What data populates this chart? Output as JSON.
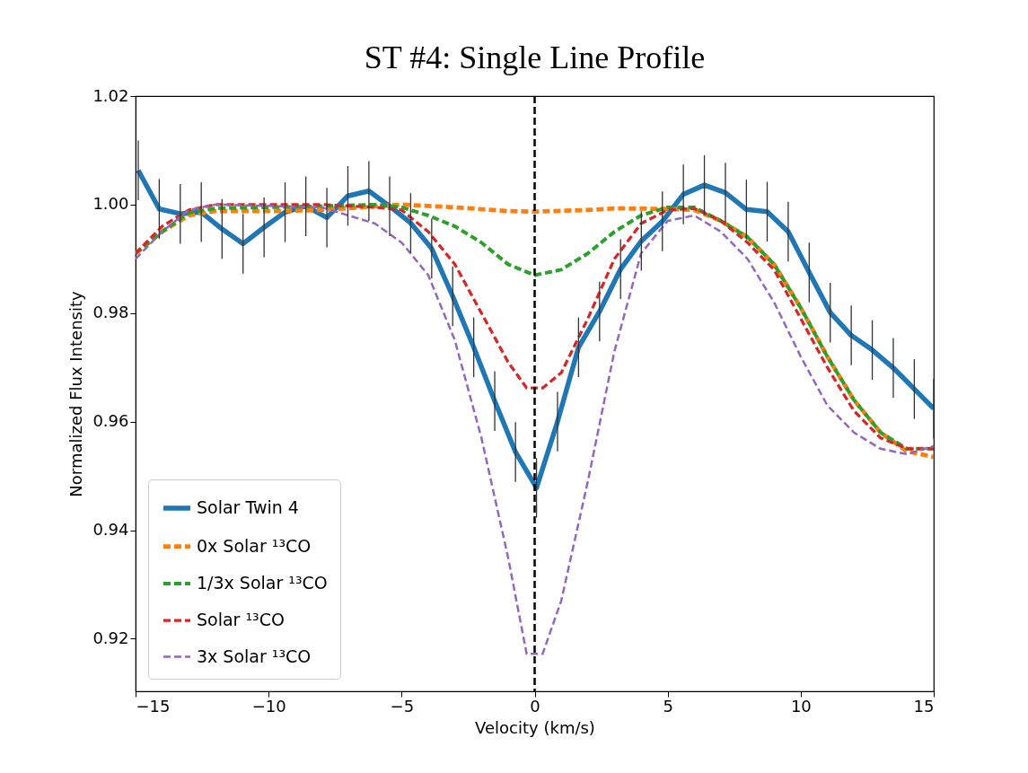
{
  "chart_data": {
    "type": "line",
    "title": "ST #4: Single Line Profile",
    "xlabel": "Velocity (km/s)",
    "ylabel": "Normalized Flux Intensity",
    "xlim": [
      -15,
      15
    ],
    "xticks": [
      -15,
      -10,
      -5,
      0,
      5,
      10,
      15
    ],
    "ylim": [
      0.9103,
      1.02
    ],
    "yticks": [
      0.92,
      0.94,
      0.96,
      0.98,
      {
        "value": 1,
        "label": "1.00"
      },
      1.02
    ],
    "legend": "bottom left",
    "marker": "none",
    "ref_lines": [
      {
        "axis": "x",
        "value": 0,
        "color": "#000000",
        "line_style": "dashed"
      }
    ],
    "series": [
      {
        "name": "Solar Twin 4",
        "color": "#1f77b4",
        "line_style": "solid",
        "x": [
          -14.9,
          -14.11,
          -13.32,
          -12.53,
          -11.75,
          -10.96,
          -10.17,
          -9.38,
          -8.6,
          -7.81,
          -7.02,
          -6.23,
          -5.45,
          -4.66,
          -3.87,
          -3.08,
          -2.29,
          -1.5,
          -0.72,
          0.07,
          0.86,
          1.65,
          2.44,
          3.23,
          4.01,
          4.8,
          5.59,
          6.38,
          7.17,
          7.96,
          8.74,
          9.53,
          10.32,
          11.11,
          11.9,
          12.69,
          13.48,
          14.27,
          15.0
        ],
        "values": [
          1.0063,
          0.9992,
          0.9983,
          0.9986,
          0.9955,
          0.9928,
          0.9958,
          0.9986,
          0.9997,
          0.9976,
          1.0016,
          1.0025,
          0.9997,
          0.9966,
          0.9919,
          0.9831,
          0.9737,
          0.9638,
          0.9544,
          0.9478,
          0.96,
          0.9737,
          0.9803,
          0.9881,
          0.9933,
          0.9969,
          1.0019,
          1.0036,
          1.0022,
          0.9991,
          0.9987,
          0.995,
          0.9875,
          0.9801,
          0.9759,
          0.9732,
          0.9699,
          0.966,
          0.9624
        ],
        "errors": [
          0.0055,
          0.0055,
          0.0055,
          0.0055,
          0.0055,
          0.0055,
          0.0055,
          0.0055,
          0.0055,
          0.0055,
          0.0055,
          0.0055,
          0.0055,
          0.0055,
          0.0055,
          0.0055,
          0.0055,
          0.0055,
          0.0055,
          0.0055,
          0.0055,
          0.0055,
          0.0055,
          0.0055,
          0.0055,
          0.0055,
          0.0055,
          0.0055,
          0.0055,
          0.0055,
          0.0055,
          0.0055,
          0.0055,
          0.0055,
          0.0055,
          0.0055,
          0.0055,
          0.0055,
          0.0055
        ]
      },
      {
        "name": "0x Solar ¹³CO",
        "color": "#ff7f0e",
        "line_style": "dashed",
        "x": [
          -15,
          -14,
          -13,
          -12,
          -10,
          -8,
          -5,
          -3,
          -1,
          0,
          2,
          3,
          5,
          6,
          7,
          8,
          9,
          10,
          11,
          12,
          13,
          14,
          15
        ],
        "values": [
          0.991,
          0.995,
          0.998,
          0.9988,
          0.9988,
          0.999,
          1.0,
          0.9995,
          0.9988,
          0.9987,
          0.999,
          0.9993,
          0.9992,
          0.999,
          0.997,
          0.994,
          0.989,
          0.981,
          0.972,
          0.964,
          0.958,
          0.9545,
          0.9535
        ]
      },
      {
        "name": "1/3x Solar ¹³CO",
        "color": "#2ca02c",
        "line_style": "dashed",
        "x": [
          -15,
          -14,
          -13,
          -12,
          -8,
          -6,
          -5,
          -4,
          -3,
          -2,
          -1,
          0,
          1,
          2,
          3,
          4,
          5,
          6,
          7,
          8,
          9,
          10,
          11,
          12,
          13,
          14,
          15
        ],
        "values": [
          0.991,
          0.995,
          0.9985,
          0.9993,
          0.9997,
          1.0,
          0.9995,
          0.998,
          0.996,
          0.993,
          0.989,
          0.987,
          0.988,
          0.991,
          0.995,
          0.998,
          0.9995,
          0.9995,
          0.997,
          0.994,
          0.989,
          0.981,
          0.972,
          0.964,
          0.958,
          0.955,
          0.955
        ]
      },
      {
        "name": "Solar ¹³CO",
        "color": "#d62728",
        "line_style": "dashed",
        "x": [
          -15,
          -14,
          -13,
          -12,
          -8,
          -6,
          -5,
          -4,
          -3,
          -2,
          -1,
          -0.3,
          0.3,
          1,
          2,
          3,
          4,
          5,
          6,
          7,
          8,
          9,
          10,
          11,
          12,
          13,
          14,
          15
        ],
        "values": [
          0.991,
          0.996,
          0.999,
          1.0,
          1.0,
          0.9995,
          0.999,
          0.995,
          0.989,
          0.98,
          0.971,
          0.9662,
          0.9662,
          0.969,
          0.979,
          0.99,
          0.9965,
          0.999,
          0.9993,
          0.997,
          0.993,
          0.988,
          0.979,
          0.97,
          0.962,
          0.957,
          0.955,
          0.955
        ]
      },
      {
        "name": "3x Solar ¹³CO",
        "color": "#9467bd",
        "line_style": "dashed",
        "x": [
          -15,
          -14,
          -13,
          -12,
          -8,
          -7,
          -6,
          -5,
          -4,
          -3,
          -2,
          -1,
          -0.3,
          0.3,
          1,
          2,
          3,
          4,
          5,
          6,
          7,
          8,
          9,
          10,
          11,
          12,
          13,
          14,
          15
        ],
        "values": [
          0.99,
          0.995,
          0.999,
          1.0,
          0.9995,
          0.998,
          0.9965,
          0.993,
          0.987,
          0.975,
          0.957,
          0.935,
          0.9172,
          0.9172,
          0.927,
          0.949,
          0.973,
          0.991,
          0.997,
          0.998,
          0.995,
          0.99,
          0.982,
          0.972,
          0.963,
          0.958,
          0.955,
          0.954,
          0.9555
        ]
      }
    ]
  }
}
